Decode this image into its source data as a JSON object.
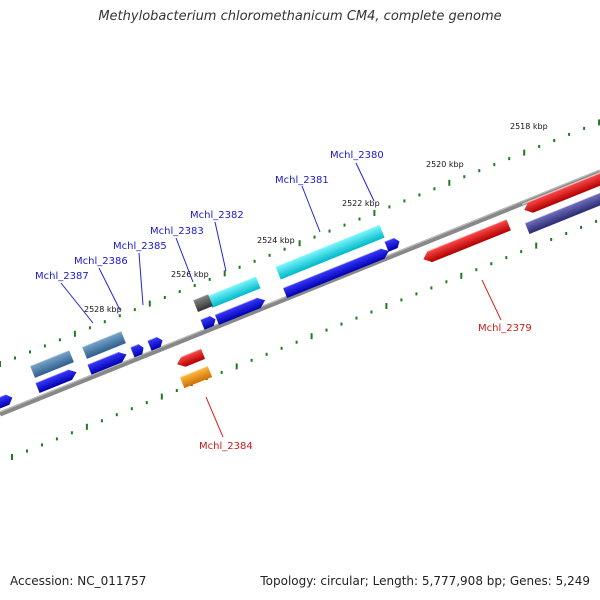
{
  "title": "Methylobacterium chloromethanicum CM4, complete genome",
  "footer": {
    "accession": "Accession: NC_011757",
    "info": "Topology: circular; Length: 5,777,908 bp; Genes: 5,249"
  },
  "ticks": [
    "2518 kbp",
    "2520 kbp",
    "2522 kbp",
    "2524 kbp",
    "2526 kbp",
    "2528 kbp"
  ],
  "genes": [
    {
      "id": "Mchl_2380",
      "color": "#1a1acc"
    },
    {
      "id": "Mchl_2381",
      "color": "#1a1acc"
    },
    {
      "id": "Mchl_2382",
      "color": "#1a1acc"
    },
    {
      "id": "Mchl_2383",
      "color": "#1a1acc"
    },
    {
      "id": "Mchl_2385",
      "color": "#1a1acc"
    },
    {
      "id": "Mchl_2386",
      "color": "#1a1acc"
    },
    {
      "id": "Mchl_2387",
      "color": "#1a1acc"
    },
    {
      "id": "Mchl_2379",
      "color": "#cc1a1a"
    },
    {
      "id": "Mchl_2384",
      "color": "#cc1a1a"
    }
  ],
  "colors": {
    "backbone": "#888888",
    "tick": "#1f7a1f",
    "cds_forward": "#0000ee",
    "cds_reverse": "#ee0000",
    "cyan": "#1ee0ee",
    "steel": "#4a7fb0",
    "navy": "#4a4a9a",
    "orange": "#ff9900",
    "gray": "#555555"
  }
}
